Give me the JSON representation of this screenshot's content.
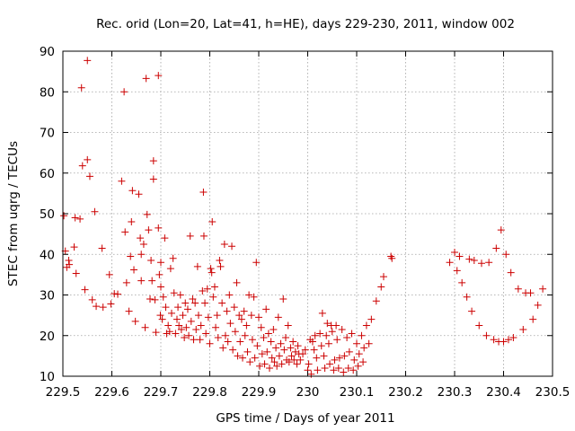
{
  "chart_data": {
    "type": "scatter",
    "title": "Rec. orid (Lon=20, Lat=41, h=HE), days 229-230, 2011, window 002",
    "xlabel": "GPS time / Days of year 2011",
    "ylabel": "STEC from uqrg / TECUs",
    "xlim": [
      229.5,
      230.5
    ],
    "ylim": [
      10,
      90
    ],
    "xticks": [
      229.5,
      229.6,
      229.7,
      229.8,
      229.9,
      230.0,
      230.1,
      230.2,
      230.3,
      230.4,
      230.5
    ],
    "xtick_labels": [
      "229.5",
      "229.6",
      "229.7",
      "229.8",
      "229.9",
      "230",
      "230.1",
      "230.2",
      "230.3",
      "230.4",
      "230.5"
    ],
    "yticks": [
      10,
      20,
      30,
      40,
      50,
      60,
      70,
      80,
      90
    ],
    "ytick_labels": [
      "10",
      "20",
      "30",
      "40",
      "50",
      "60",
      "70",
      "80",
      "90"
    ],
    "grid": true,
    "marker": "plus",
    "color": "#cc0000",
    "points": [
      [
        229.502,
        49.5
      ],
      [
        229.505,
        40.8
      ],
      [
        229.508,
        36.8
      ],
      [
        229.512,
        38.5
      ],
      [
        229.513,
        37.5
      ],
      [
        229.523,
        41.8
      ],
      [
        229.525,
        49.0
      ],
      [
        229.527,
        35.3
      ],
      [
        229.535,
        48.7
      ],
      [
        229.538,
        81.0
      ],
      [
        229.54,
        61.8
      ],
      [
        229.545,
        31.3
      ],
      [
        229.55,
        87.7
      ],
      [
        229.55,
        63.3
      ],
      [
        229.555,
        59.2
      ],
      [
        229.56,
        28.8
      ],
      [
        229.565,
        50.5
      ],
      [
        229.568,
        27.2
      ],
      [
        229.58,
        41.5
      ],
      [
        229.582,
        27.0
      ],
      [
        229.595,
        35.0
      ],
      [
        229.598,
        27.8
      ],
      [
        229.605,
        30.3
      ],
      [
        229.612,
        30.2
      ],
      [
        229.625,
        80.0
      ],
      [
        229.62,
        58.0
      ],
      [
        229.627,
        45.5
      ],
      [
        229.63,
        33.0
      ],
      [
        229.635,
        26.0
      ],
      [
        229.638,
        39.5
      ],
      [
        229.64,
        48.0
      ],
      [
        229.642,
        55.7
      ],
      [
        229.645,
        36.2
      ],
      [
        229.648,
        23.5
      ],
      [
        229.655,
        54.8
      ],
      [
        229.658,
        44.0
      ],
      [
        229.66,
        40.0
      ],
      [
        229.66,
        33.5
      ],
      [
        229.665,
        42.5
      ],
      [
        229.668,
        22.0
      ],
      [
        229.67,
        83.3
      ],
      [
        229.672,
        49.8
      ],
      [
        229.675,
        46.0
      ],
      [
        229.678,
        29.0
      ],
      [
        229.68,
        38.5
      ],
      [
        229.682,
        33.5
      ],
      [
        229.685,
        63.0
      ],
      [
        229.685,
        58.5
      ],
      [
        229.688,
        28.8
      ],
      [
        229.69,
        20.8
      ],
      [
        229.695,
        84.0
      ],
      [
        229.695,
        46.5
      ],
      [
        229.697,
        35.0
      ],
      [
        229.699,
        25.0
      ],
      [
        229.7,
        38.0
      ],
      [
        229.7,
        32.0
      ],
      [
        229.703,
        24.0
      ],
      [
        229.705,
        29.5
      ],
      [
        229.708,
        44.0
      ],
      [
        229.71,
        27.0
      ],
      [
        229.712,
        20.5
      ],
      [
        229.715,
        22.5
      ],
      [
        229.718,
        21.0
      ],
      [
        229.72,
        36.5
      ],
      [
        229.722,
        25.5
      ],
      [
        229.725,
        39.0
      ],
      [
        229.727,
        30.5
      ],
      [
        229.73,
        20.5
      ],
      [
        229.733,
        24.0
      ],
      [
        229.735,
        27.0
      ],
      [
        229.737,
        22.5
      ],
      [
        229.74,
        30.0
      ],
      [
        229.742,
        21.5
      ],
      [
        229.745,
        25.0
      ],
      [
        229.748,
        19.5
      ],
      [
        229.75,
        28.0
      ],
      [
        229.752,
        22.0
      ],
      [
        229.755,
        26.5
      ],
      [
        229.757,
        20.0
      ],
      [
        229.76,
        44.5
      ],
      [
        229.762,
        23.5
      ],
      [
        229.765,
        29.0
      ],
      [
        229.767,
        19.0
      ],
      [
        229.77,
        28.0
      ],
      [
        229.772,
        21.5
      ],
      [
        229.775,
        37.0
      ],
      [
        229.777,
        25.0
      ],
      [
        229.78,
        19.0
      ],
      [
        229.782,
        22.5
      ],
      [
        229.785,
        31.0
      ],
      [
        229.787,
        55.3
      ],
      [
        229.788,
        44.5
      ],
      [
        229.79,
        28.0
      ],
      [
        229.792,
        20.5
      ],
      [
        229.795,
        31.5
      ],
      [
        229.797,
        24.5
      ],
      [
        229.8,
        18.0
      ],
      [
        229.802,
        36.5
      ],
      [
        229.804,
        35.5
      ],
      [
        229.805,
        48.0
      ],
      [
        229.807,
        29.5
      ],
      [
        229.81,
        32.0
      ],
      [
        229.812,
        22.0
      ],
      [
        229.815,
        25.0
      ],
      [
        229.817,
        19.5
      ],
      [
        229.82,
        38.5
      ],
      [
        229.822,
        37.0
      ],
      [
        229.825,
        28.0
      ],
      [
        229.827,
        17.0
      ],
      [
        229.83,
        42.5
      ],
      [
        229.832,
        20.0
      ],
      [
        229.835,
        26.0
      ],
      [
        229.837,
        18.5
      ],
      [
        229.84,
        30.0
      ],
      [
        229.842,
        23.0
      ],
      [
        229.845,
        42.0
      ],
      [
        229.847,
        16.5
      ],
      [
        229.85,
        27.0
      ],
      [
        229.852,
        21.0
      ],
      [
        229.855,
        33.0
      ],
      [
        229.857,
        15.0
      ],
      [
        229.86,
        25.0
      ],
      [
        229.862,
        18.5
      ],
      [
        229.865,
        24.0
      ],
      [
        229.867,
        14.5
      ],
      [
        229.87,
        26.0
      ],
      [
        229.872,
        20.0
      ],
      [
        229.875,
        22.5
      ],
      [
        229.877,
        16.0
      ],
      [
        229.88,
        30.0
      ],
      [
        229.882,
        13.5
      ],
      [
        229.885,
        25.0
      ],
      [
        229.887,
        19.0
      ],
      [
        229.89,
        29.5
      ],
      [
        229.892,
        14.5
      ],
      [
        229.895,
        38.0
      ],
      [
        229.897,
        17.5
      ],
      [
        229.9,
        24.5
      ],
      [
        229.902,
        12.5
      ],
      [
        229.905,
        22.0
      ],
      [
        229.907,
        15.5
      ],
      [
        229.91,
        19.5
      ],
      [
        229.912,
        13.0
      ],
      [
        229.915,
        26.5
      ],
      [
        229.917,
        16.0
      ],
      [
        229.92,
        20.5
      ],
      [
        229.922,
        12.0
      ],
      [
        229.925,
        18.5
      ],
      [
        229.927,
        14.5
      ],
      [
        229.93,
        21.5
      ],
      [
        229.932,
        13.5
      ],
      [
        229.935,
        17.0
      ],
      [
        229.937,
        12.5
      ],
      [
        229.94,
        24.5
      ],
      [
        229.942,
        15.0
      ],
      [
        229.945,
        18.0
      ],
      [
        229.947,
        13.0
      ],
      [
        229.95,
        29.0
      ],
      [
        229.952,
        16.5
      ],
      [
        229.955,
        19.5
      ],
      [
        229.957,
        14.0
      ],
      [
        229.96,
        22.5
      ],
      [
        229.962,
        13.5
      ],
      [
        229.965,
        17.0
      ],
      [
        229.967,
        15.0
      ],
      [
        229.97,
        18.5
      ],
      [
        229.972,
        14.0
      ],
      [
        229.975,
        16.0
      ],
      [
        229.978,
        13.0
      ],
      [
        229.98,
        17.5
      ],
      [
        229.982,
        15.5
      ],
      [
        229.985,
        14.0
      ],
      [
        229.99,
        15.5
      ],
      [
        229.995,
        16.5
      ],
      [
        230.0,
        11.5
      ],
      [
        230.002,
        13.0
      ],
      [
        230.005,
        19.0
      ],
      [
        230.007,
        10.5
      ],
      [
        230.01,
        18.5
      ],
      [
        230.013,
        16.5
      ],
      [
        230.015,
        20.0
      ],
      [
        230.018,
        14.5
      ],
      [
        230.02,
        11.5
      ],
      [
        230.025,
        20.5
      ],
      [
        230.028,
        17.5
      ],
      [
        230.03,
        25.5
      ],
      [
        230.033,
        15.0
      ],
      [
        230.035,
        12.0
      ],
      [
        230.038,
        20.0
      ],
      [
        230.04,
        23.0
      ],
      [
        230.043,
        18.0
      ],
      [
        230.045,
        13.0
      ],
      [
        230.048,
        22.5
      ],
      [
        230.05,
        21.0
      ],
      [
        230.053,
        11.5
      ],
      [
        230.055,
        14.0
      ],
      [
        230.058,
        22.5
      ],
      [
        230.06,
        19.0
      ],
      [
        230.063,
        12.0
      ],
      [
        230.065,
        14.5
      ],
      [
        230.07,
        21.5
      ],
      [
        230.073,
        11.0
      ],
      [
        230.075,
        15.0
      ],
      [
        230.08,
        19.5
      ],
      [
        230.083,
        12.0
      ],
      [
        230.085,
        16.0
      ],
      [
        230.09,
        20.5
      ],
      [
        230.093,
        11.5
      ],
      [
        230.095,
        14.0
      ],
      [
        230.1,
        18.0
      ],
      [
        230.103,
        12.5
      ],
      [
        230.105,
        15.5
      ],
      [
        230.11,
        20.0
      ],
      [
        230.113,
        13.5
      ],
      [
        230.115,
        17.0
      ],
      [
        230.12,
        22.5
      ],
      [
        230.125,
        18.0
      ],
      [
        230.13,
        24.0
      ],
      [
        230.14,
        28.5
      ],
      [
        230.15,
        32.0
      ],
      [
        230.155,
        34.5
      ],
      [
        230.17,
        39.5
      ],
      [
        230.172,
        39.0
      ],
      [
        230.29,
        38.0
      ],
      [
        230.3,
        40.5
      ],
      [
        230.305,
        36.0
      ],
      [
        230.31,
        39.5
      ],
      [
        230.315,
        33.0
      ],
      [
        230.325,
        29.5
      ],
      [
        230.33,
        38.8
      ],
      [
        230.335,
        26.0
      ],
      [
        230.34,
        38.5
      ],
      [
        230.35,
        22.5
      ],
      [
        230.355,
        37.8
      ],
      [
        230.365,
        20.0
      ],
      [
        230.37,
        38.0
      ],
      [
        230.38,
        19.0
      ],
      [
        230.385,
        41.5
      ],
      [
        230.39,
        18.5
      ],
      [
        230.395,
        46.0
      ],
      [
        230.4,
        18.5
      ],
      [
        230.405,
        40.0
      ],
      [
        230.41,
        19.0
      ],
      [
        230.415,
        35.5
      ],
      [
        230.42,
        19.5
      ],
      [
        230.43,
        31.5
      ],
      [
        230.44,
        21.5
      ],
      [
        230.445,
        30.5
      ],
      [
        230.455,
        30.5
      ],
      [
        230.46,
        24.0
      ],
      [
        230.47,
        27.5
      ],
      [
        230.48,
        31.5
      ]
    ]
  }
}
